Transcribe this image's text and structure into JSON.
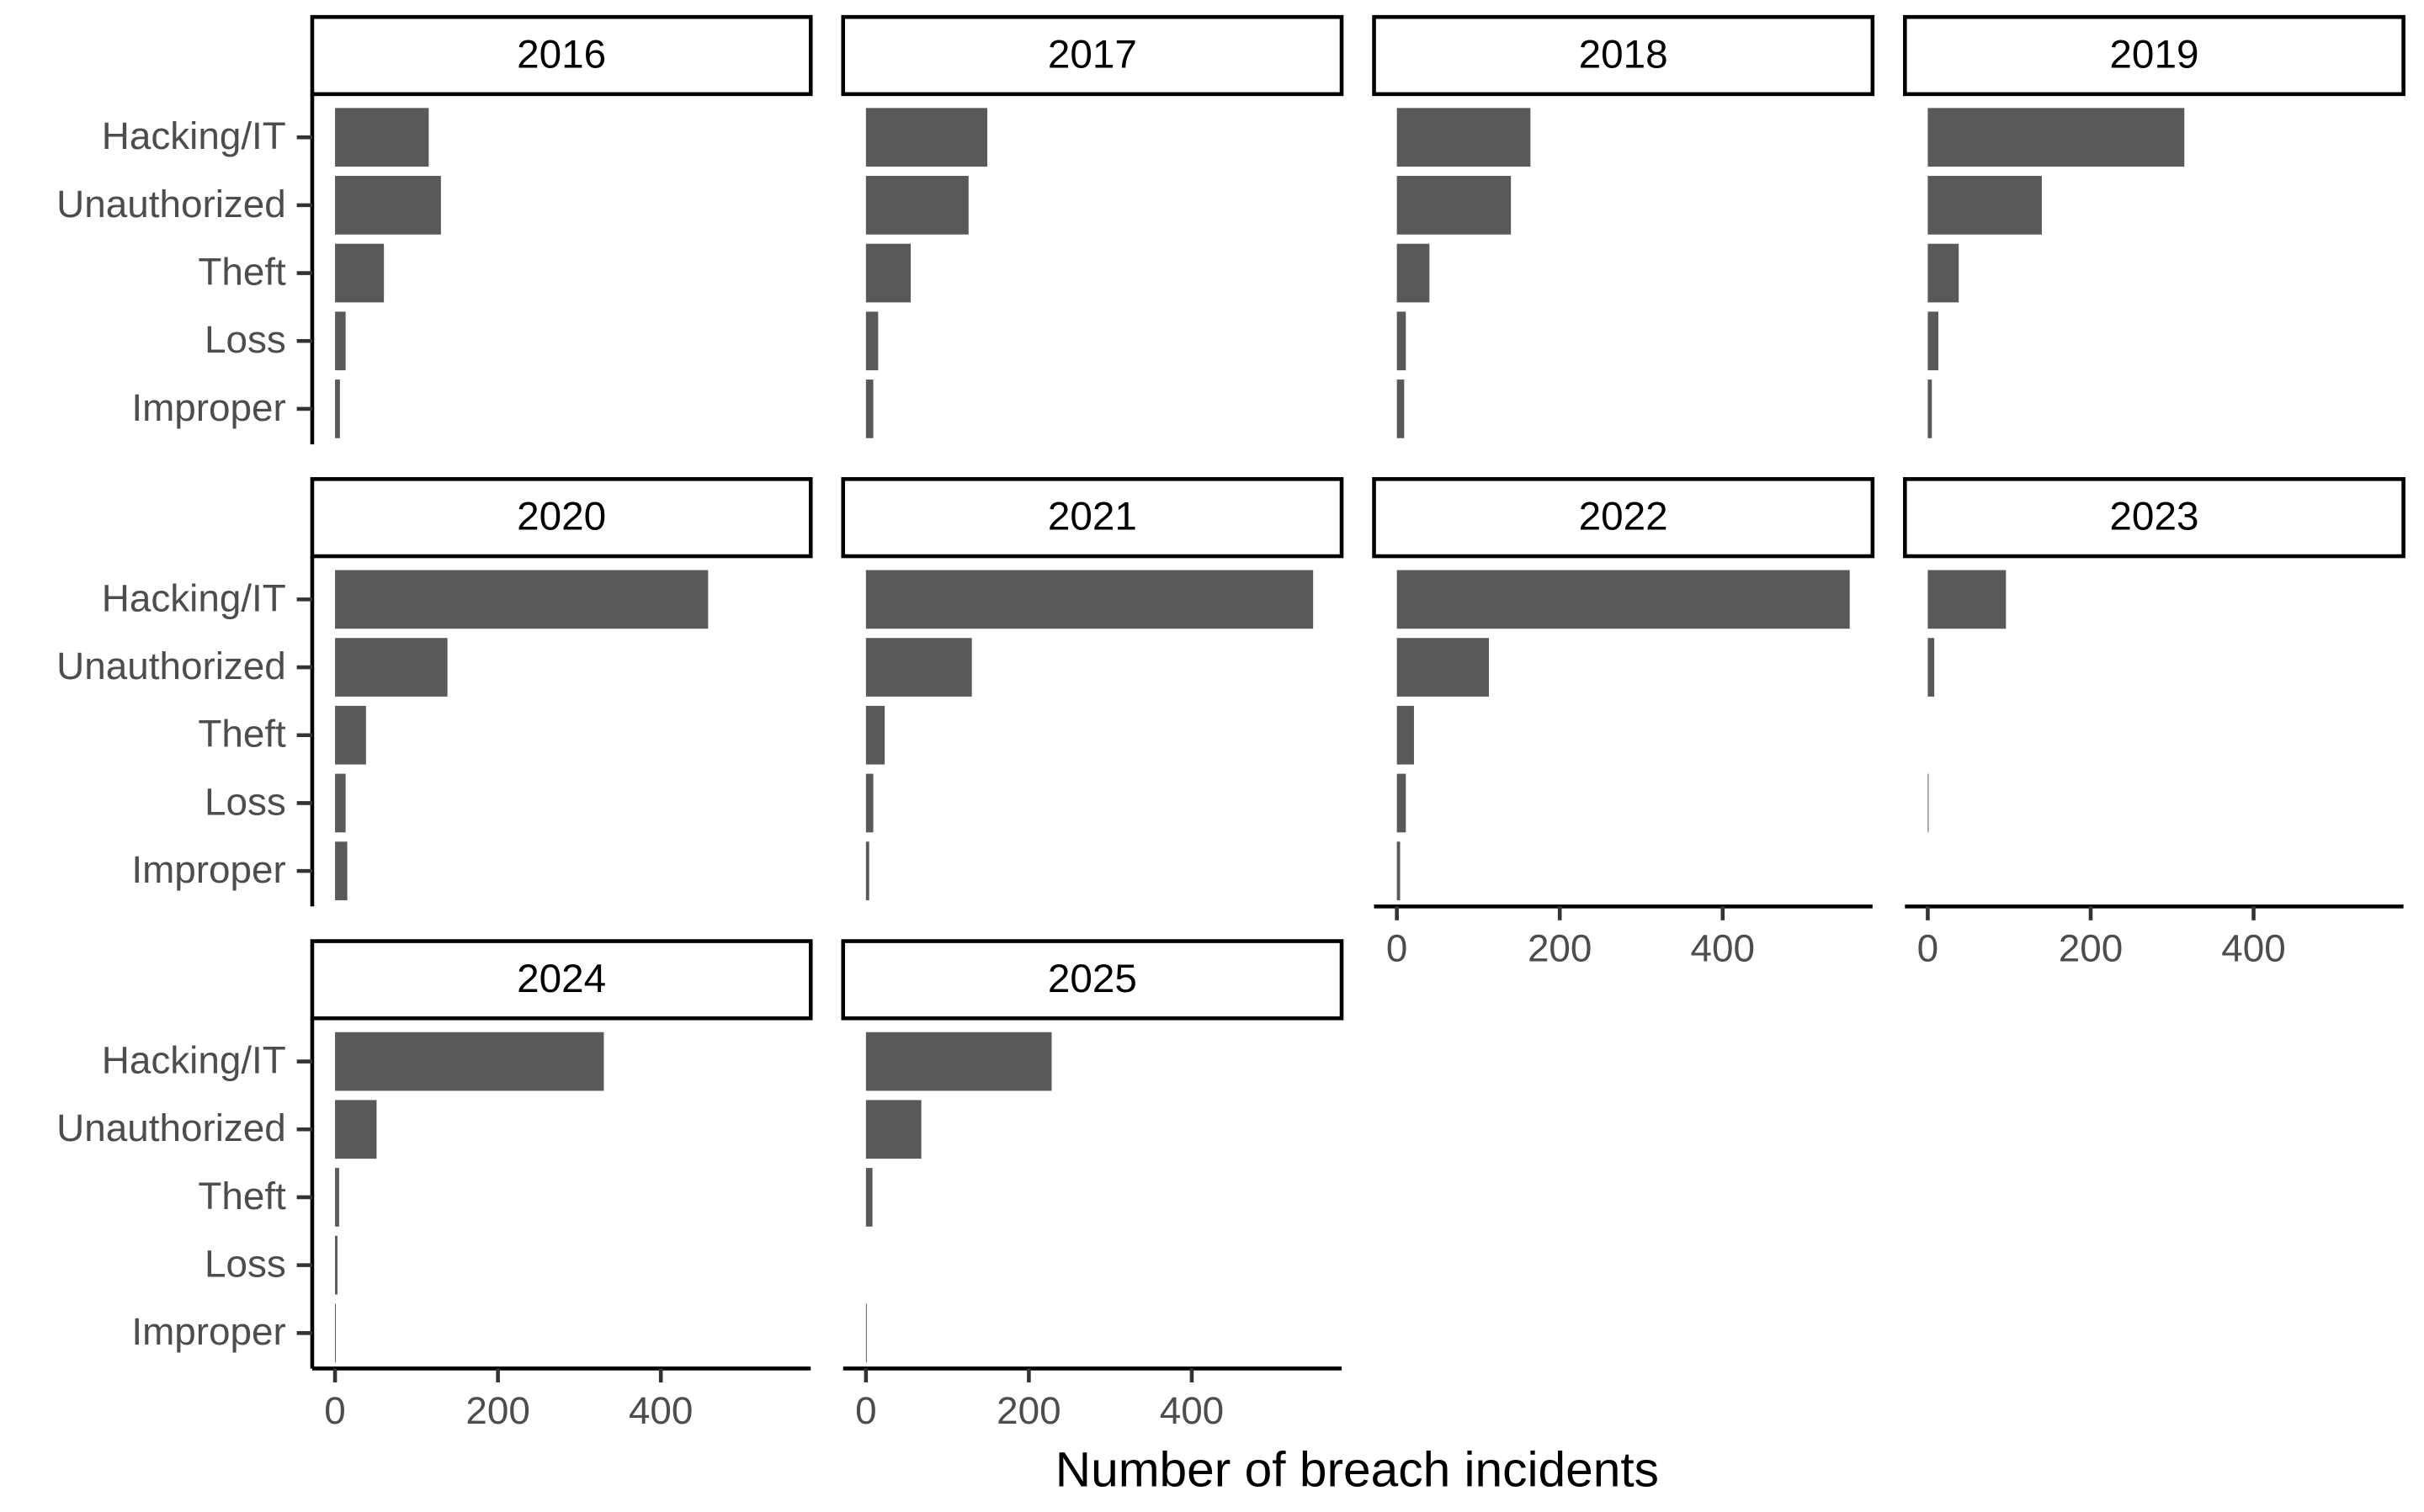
{
  "shared": {
    "categories": [
      "Hacking/IT",
      "Unauthorized",
      "Theft",
      "Loss",
      "Improper"
    ],
    "x_label": "Number of breach incidents",
    "xlim": [
      -28,
      584
    ],
    "xticks": [
      0,
      200,
      400
    ],
    "color": "#595959"
  },
  "chart_data": [
    {
      "type": "bar",
      "title": "2016",
      "values": [
        115,
        130,
        60,
        13,
        6
      ]
    },
    {
      "type": "bar",
      "title": "2017",
      "values": [
        149,
        126,
        55,
        15,
        9
      ]
    },
    {
      "type": "bar",
      "title": "2018",
      "values": [
        164,
        140,
        40,
        11,
        9
      ]
    },
    {
      "type": "bar",
      "title": "2019",
      "values": [
        315,
        140,
        38,
        13,
        5
      ]
    },
    {
      "type": "bar",
      "title": "2020",
      "values": [
        458,
        138,
        38,
        13,
        15
      ]
    },
    {
      "type": "bar",
      "title": "2021",
      "values": [
        549,
        130,
        23,
        9,
        4
      ]
    },
    {
      "type": "bar",
      "title": "2022",
      "values": [
        556,
        113,
        21,
        11,
        4
      ]
    },
    {
      "type": "bar",
      "title": "2023",
      "values": [
        96,
        8,
        0,
        1,
        0
      ]
    },
    {
      "type": "bar",
      "title": "2024",
      "values": [
        330,
        51,
        5,
        3,
        1
      ]
    },
    {
      "type": "bar",
      "title": "2025",
      "values": [
        228,
        68,
        8,
        0,
        1
      ]
    }
  ]
}
